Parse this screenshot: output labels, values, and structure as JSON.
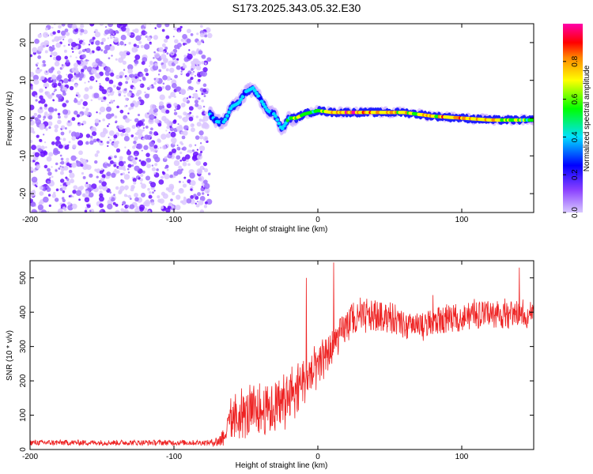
{
  "title": "S173.2025.343.05.32.E30",
  "colors": {
    "snr_line": "#ee2222",
    "axis": "#000000",
    "spectrogram_bg": "#ffffff",
    "scatter": "#7a2cff",
    "colormap": [
      "#c8a8ff",
      "#6a00ff",
      "#0000ff",
      "#00e0ff",
      "#00ff00",
      "#ffff00",
      "#ff8800",
      "#ff0000",
      "#ff00aa"
    ]
  },
  "chart_data": [
    {
      "type": "heatmap",
      "title": "",
      "xlabel": "Height of straight line (km)",
      "ylabel": "Frequency (Hz)",
      "xlim": [
        -200,
        150
      ],
      "ylim": [
        -25,
        25
      ],
      "xticks": [
        -200,
        -100,
        0,
        100
      ],
      "yticks": [
        -20,
        -10,
        0,
        10,
        20
      ],
      "xtick_labels": [
        "-200",
        "-100",
        "0",
        "100"
      ],
      "ytick_labels": [
        "-20",
        "-10",
        "0",
        "10",
        "20"
      ],
      "colorbar": {
        "label": "Normalized spectral amplitude",
        "range": [
          0,
          1
        ],
        "ticks": [
          0.0,
          0.2,
          0.4,
          0.6,
          0.8
        ],
        "tick_labels": [
          "0.0",
          "0.2",
          "0.4",
          "0.6",
          "0.8"
        ]
      },
      "noise_region": {
        "x_range": [
          -200,
          -75
        ],
        "freq_range": [
          -25,
          25
        ],
        "amplitude": 0.15
      },
      "ridge": {
        "x": [
          -75,
          -70,
          -65,
          -60,
          -55,
          -50,
          -45,
          -40,
          -35,
          -30,
          -25,
          -20,
          -15,
          -10,
          -5,
          0,
          10,
          20,
          40,
          60,
          80,
          100,
          120,
          150
        ],
        "freq": [
          1,
          -1,
          -1,
          3,
          4,
          7,
          8,
          5,
          2,
          1,
          -3,
          0,
          0,
          1,
          1.5,
          2,
          1.5,
          1.5,
          1.5,
          1.5,
          0.5,
          0,
          -0.5,
          -0.5
        ],
        "amplitude": [
          0.25,
          0.35,
          0.3,
          0.4,
          0.35,
          0.35,
          0.4,
          0.3,
          0.35,
          0.3,
          0.3,
          0.4,
          0.55,
          0.6,
          0.45,
          0.5,
          0.75,
          0.85,
          0.8,
          0.7,
          0.75,
          0.8,
          0.7,
          0.5
        ]
      }
    },
    {
      "type": "line",
      "title": "",
      "xlabel": "Height of straight line (km)",
      "ylabel": "SNR (10 * v/v)",
      "xlim": [
        -200,
        150
      ],
      "ylim": [
        0,
        550
      ],
      "xticks": [
        -200,
        -100,
        0,
        100
      ],
      "yticks": [
        0,
        100,
        200,
        300,
        400,
        500
      ],
      "xtick_labels": [
        "-200",
        "-100",
        "0",
        "100"
      ],
      "ytick_labels": [
        "0",
        "100",
        "200",
        "300",
        "400",
        "500"
      ],
      "series": [
        {
          "name": "SNR",
          "x": [
            -200,
            -150,
            -100,
            -75,
            -68,
            -60,
            -50,
            -40,
            -30,
            -20,
            -10,
            0,
            10,
            20,
            30,
            40,
            50,
            60,
            70,
            80,
            90,
            100,
            110,
            120,
            130,
            140,
            150
          ],
          "y": [
            20,
            20,
            20,
            20,
            25,
            80,
            100,
            110,
            120,
            140,
            200,
            230,
            300,
            360,
            380,
            390,
            380,
            360,
            350,
            370,
            380,
            385,
            390,
            395,
            390,
            395,
            390
          ],
          "noise": [
            8,
            8,
            8,
            8,
            20,
            60,
            70,
            70,
            75,
            80,
            70,
            60,
            50,
            50,
            50,
            45,
            40,
            40,
            40,
            40,
            40,
            40,
            40,
            40,
            40,
            40,
            40
          ],
          "spikes": [
            {
              "x": -8,
              "y": 500
            },
            {
              "x": 11,
              "y": 545
            },
            {
              "x": 140,
              "y": 530
            },
            {
              "x": 80,
              "y": 450
            }
          ]
        }
      ]
    }
  ]
}
